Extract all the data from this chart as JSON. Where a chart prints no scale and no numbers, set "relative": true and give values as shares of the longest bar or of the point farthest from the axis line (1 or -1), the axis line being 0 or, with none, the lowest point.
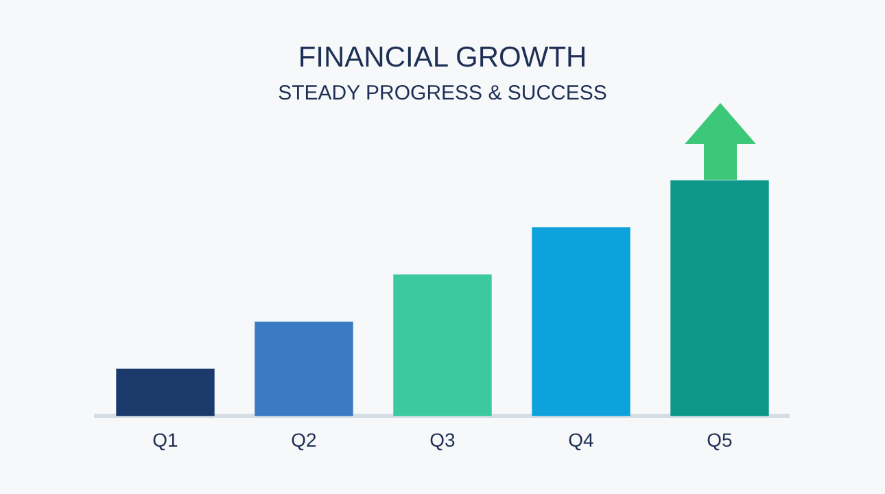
{
  "chart_data": {
    "type": "bar",
    "title": "FINANCIAL GROWTH",
    "subtitle": "STEADY PROGRESS & SUCCESS",
    "categories": [
      "Q1",
      "Q2",
      "Q3",
      "Q4",
      "Q5"
    ],
    "values": [
      0.2,
      0.4,
      0.6,
      0.8,
      1.0
    ],
    "colors": [
      "#1b3a6b",
      "#3a7bc4",
      "#3cc9a0",
      "#0ea2dc",
      "#0d978b"
    ],
    "relative": true,
    "grid": false,
    "legend": false
  }
}
